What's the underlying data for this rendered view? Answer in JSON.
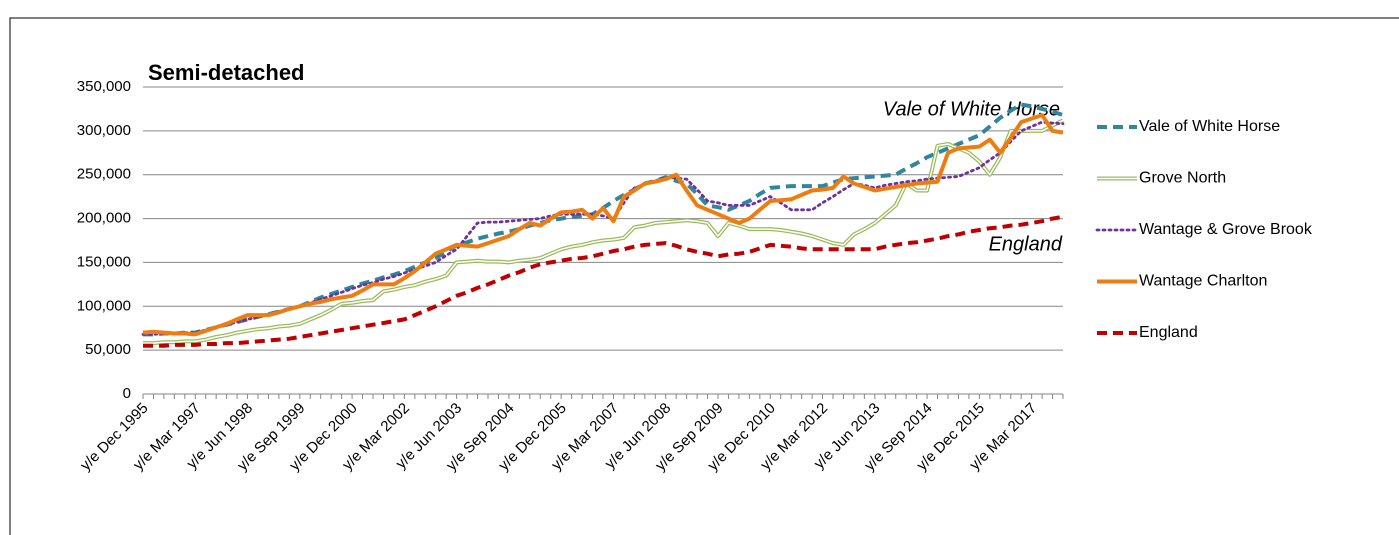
{
  "chart_data": {
    "type": "line",
    "title": "Semi-detached",
    "annotations": [
      {
        "text": "Vale of White Horse",
        "color": "#000000"
      },
      {
        "text": "England",
        "color": "#c00000"
      }
    ],
    "categories": [
      "y/e Dec 1995",
      null,
      null,
      null,
      null,
      "y/e Mar 1997",
      null,
      null,
      null,
      null,
      "y/e Jun 1998",
      null,
      null,
      null,
      null,
      "y/e Sep 1999",
      null,
      null,
      null,
      null,
      "y/e Dec 2000",
      null,
      null,
      null,
      null,
      "y/e Mar 2002",
      null,
      null,
      null,
      null,
      "y/e Jun 2003",
      null,
      null,
      null,
      null,
      "y/e Sep 2004",
      null,
      null,
      null,
      null,
      "y/e Dec 2005",
      null,
      null,
      null,
      null,
      "y/e Mar 2007",
      null,
      null,
      null,
      null,
      "y/e Jun 2008",
      null,
      null,
      null,
      null,
      "y/e Sep 2009",
      null,
      null,
      null,
      null,
      "y/e Dec 2010",
      null,
      null,
      null,
      null,
      "y/e Mar 2012",
      null,
      null,
      null,
      null,
      "y/e Jun 2013",
      null,
      null,
      null,
      null,
      "y/e Sep 2014",
      null,
      null,
      null,
      null,
      "y/e Dec 2015",
      null,
      null,
      null,
      null,
      "y/e Mar 2017",
      null,
      null,
      null
    ],
    "series": [
      {
        "name": "Vale of White Horse",
        "color": "#31859c",
        "style": "dashed",
        "values": [
          68000,
          68000,
          69000,
          69000,
          70000,
          70000,
          73000,
          76000,
          79000,
          82000,
          85000,
          88000,
          91000,
          94000,
          97000,
          100000,
          105000,
          110000,
          114000,
          118000,
          122000,
          126000,
          129000,
          133000,
          136000,
          140000,
          145000,
          150000,
          155000,
          162000,
          170000,
          173000,
          177000,
          180000,
          183000,
          185000,
          188000,
          192000,
          195000,
          198000,
          200000,
          202000,
          203000,
          205000,
          212000,
          220000,
          227000,
          233000,
          240000,
          243000,
          247000,
          243000,
          240000,
          228000,
          215000,
          213000,
          210000,
          215000,
          220000,
          228000,
          235000,
          236000,
          237000,
          237000,
          237000,
          237000,
          241000,
          245000,
          246000,
          247000,
          248000,
          249000,
          250000,
          257000,
          263000,
          270000,
          275000,
          280000,
          285000,
          290000,
          295000,
          305000,
          315000,
          323000,
          330000,
          328000,
          325000,
          322000,
          318000
        ]
      },
      {
        "name": "Grove North",
        "color": "#9bbb59",
        "style": "double",
        "values": [
          58000,
          58000,
          59000,
          59000,
          60000,
          60000,
          62000,
          65000,
          67000,
          70000,
          72000,
          74000,
          75000,
          77000,
          78000,
          80000,
          85000,
          90000,
          96000,
          103000,
          104000,
          106000,
          107000,
          117000,
          119000,
          122000,
          124000,
          128000,
          131000,
          135000,
          150000,
          151000,
          152000,
          151000,
          151000,
          150000,
          152000,
          153000,
          155000,
          160000,
          165000,
          168000,
          170000,
          173000,
          175000,
          176000,
          178000,
          190000,
          192000,
          195000,
          196000,
          197000,
          198000,
          197000,
          195000,
          180000,
          195000,
          192000,
          188000,
          188000,
          188000,
          187000,
          185000,
          183000,
          180000,
          176000,
          172000,
          170000,
          182000,
          188000,
          195000,
          205000,
          215000,
          240000,
          232000,
          232000,
          283000,
          285000,
          280000,
          275000,
          265000,
          250000,
          270000,
          300000,
          300000,
          300000,
          300000,
          306000,
          312000
        ]
      },
      {
        "name": "Wantage & Grove Brook",
        "color": "#7030a0",
        "style": "dotted",
        "values": [
          68000,
          68000,
          69000,
          69000,
          70000,
          70000,
          73000,
          76000,
          79000,
          82000,
          85000,
          88000,
          91000,
          94000,
          97000,
          100000,
          104000,
          108000,
          112000,
          116000,
          120000,
          124000,
          127000,
          131000,
          134000,
          138000,
          142000,
          146000,
          150000,
          158000,
          165000,
          180000,
          195000,
          196000,
          196000,
          197000,
          198000,
          199000,
          200000,
          203000,
          205000,
          205000,
          205000,
          205000,
          203000,
          200000,
          218000,
          235000,
          239000,
          243000,
          247000,
          246000,
          245000,
          233000,
          220000,
          218000,
          215000,
          215000,
          215000,
          220000,
          225000,
          218000,
          210000,
          210000,
          210000,
          218000,
          225000,
          233000,
          240000,
          238000,
          235000,
          238000,
          240000,
          242000,
          243000,
          245000,
          246000,
          247000,
          248000,
          253000,
          258000,
          267000,
          275000,
          288000,
          300000,
          305000,
          310000,
          309000,
          308000
        ]
      },
      {
        "name": "Wantage Charlton",
        "color": "#ed7d11",
        "style": "solid",
        "values": [
          70000,
          71000,
          70000,
          69000,
          69000,
          68000,
          72000,
          76000,
          80000,
          85000,
          90000,
          90000,
          90000,
          93000,
          97000,
          100000,
          103000,
          105000,
          108000,
          110000,
          112000,
          118000,
          125000,
          125000,
          125000,
          132000,
          140000,
          150000,
          160000,
          165000,
          170000,
          169000,
          168000,
          172000,
          176000,
          180000,
          188000,
          195000,
          192000,
          200000,
          207000,
          208000,
          210000,
          200000,
          212000,
          197000,
          225000,
          232000,
          240000,
          242000,
          245000,
          250000,
          232000,
          215000,
          210000,
          205000,
          200000,
          195000,
          200000,
          210000,
          220000,
          221000,
          222000,
          227000,
          232000,
          233000,
          235000,
          248000,
          240000,
          236000,
          232000,
          234000,
          236000,
          238000,
          240000,
          241000,
          242000,
          275000,
          280000,
          281000,
          282000,
          290000,
          275000,
          292000,
          310000,
          314000,
          318000,
          300000,
          298000
        ]
      },
      {
        "name": "England",
        "color": "#c00000",
        "style": "dashed",
        "values": [
          55000,
          55000,
          55000,
          56000,
          56000,
          56000,
          57000,
          57000,
          58000,
          58000,
          59000,
          60000,
          61000,
          62000,
          63000,
          65000,
          67000,
          69000,
          71000,
          73000,
          75000,
          77000,
          79000,
          81000,
          83000,
          85000,
          90000,
          95000,
          100000,
          106000,
          112000,
          116000,
          121000,
          125000,
          130000,
          135000,
          139000,
          144000,
          148000,
          150000,
          152000,
          154000,
          155000,
          157000,
          160000,
          163000,
          165000,
          168000,
          170000,
          171000,
          172000,
          169000,
          165000,
          162000,
          160000,
          157000,
          159000,
          160000,
          162000,
          166000,
          170000,
          169000,
          168000,
          166000,
          165000,
          165000,
          165000,
          165000,
          165000,
          165000,
          165000,
          168000,
          170000,
          172000,
          173000,
          175000,
          177000,
          180000,
          182000,
          185000,
          187000,
          189000,
          190000,
          192000,
          193000,
          195000,
          197000,
          200000,
          202000
        ]
      }
    ],
    "ylim": [
      0,
      350000
    ],
    "yticks": [
      {
        "value": 0,
        "label": "0"
      },
      {
        "value": 50000,
        "label": "50,000"
      },
      {
        "value": 100000,
        "label": "100,000"
      },
      {
        "value": 150000,
        "label": "150,000"
      },
      {
        "value": 200000,
        "label": "200,000"
      },
      {
        "value": 250000,
        "label": "250,000"
      },
      {
        "value": 300000,
        "label": "300,000"
      },
      {
        "value": 350000,
        "label": "350,000"
      }
    ],
    "grid": true,
    "legend": "right"
  }
}
